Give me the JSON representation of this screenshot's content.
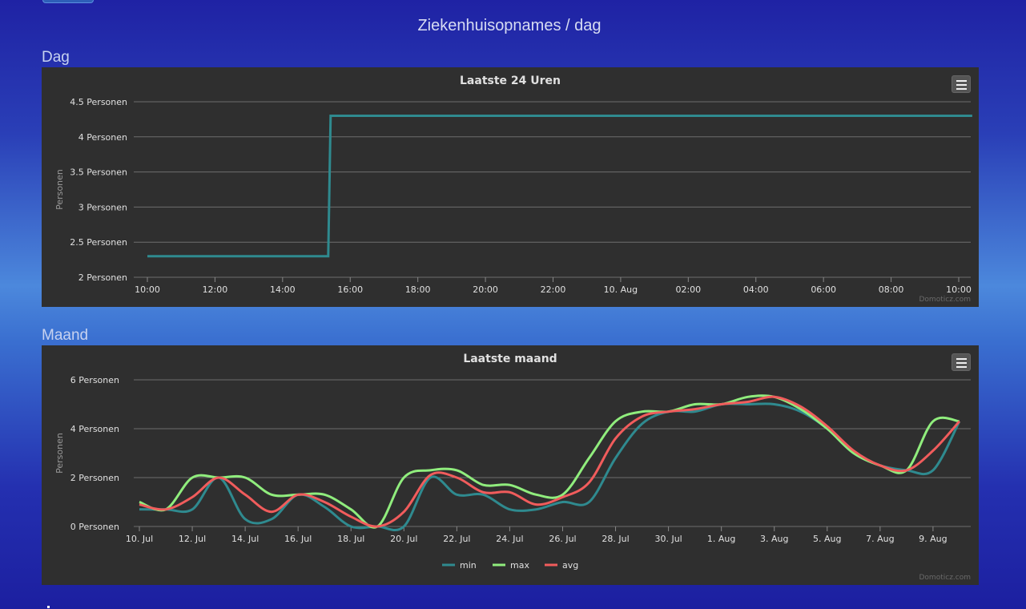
{
  "page": {
    "title": "Ziekenhuisopnames / dag"
  },
  "sections": {
    "day_label": "Dag",
    "month_label": "Maand"
  },
  "credit": "Domoticz.com",
  "colors": {
    "min": "#2f8a8f",
    "max": "#90ed7d",
    "avg": "#f15c5c",
    "day_line": "#2f8a8f",
    "panel_bg": "#2f2f2f"
  },
  "icons": {
    "menu": "hamburger-menu-icon"
  },
  "chart_data": [
    {
      "type": "line",
      "title": "Laatste 24 Uren",
      "ylabel": "Personen",
      "xlabel": "",
      "ylim": [
        2,
        4.5
      ],
      "y_ticks": [
        "2 Personen",
        "2.5 Personen",
        "3 Personen",
        "3.5 Personen",
        "4 Personen",
        "4.5 Personen"
      ],
      "x_ticks": [
        "10:00",
        "12:00",
        "14:00",
        "16:00",
        "18:00",
        "20:00",
        "22:00",
        "10. Aug",
        "02:00",
        "04:00",
        "06:00",
        "08:00",
        "10:00"
      ],
      "grid": true,
      "series": [
        {
          "values": [
            [
              0,
              2.3
            ],
            [
              5.35,
              2.3
            ],
            [
              5.42,
              4.3
            ],
            [
              24.4,
              4.3
            ]
          ]
        }
      ]
    },
    {
      "type": "line",
      "title": "Laatste maand",
      "ylabel": "Personen",
      "xlabel": "",
      "ylim": [
        0,
        6
      ],
      "y_ticks": [
        "0 Personen",
        "2 Personen",
        "4 Personen",
        "6 Personen"
      ],
      "x_ticks": [
        "10. Jul",
        "12. Jul",
        "14. Jul",
        "16. Jul",
        "18. Jul",
        "20. Jul",
        "22. Jul",
        "24. Jul",
        "26. Jul",
        "28. Jul",
        "30. Jul",
        "1. Aug",
        "3. Aug",
        "5. Aug",
        "7. Aug",
        "9. Aug"
      ],
      "grid": true,
      "legend": "bottom-center",
      "series": [
        {
          "name": "min",
          "values": [
            0.7,
            0.7,
            0.7,
            2.0,
            0.3,
            0.3,
            1.3,
            0.8,
            0.0,
            0.0,
            0.0,
            2.0,
            1.3,
            1.3,
            0.7,
            0.7,
            1.0,
            1.0,
            2.8,
            4.2,
            4.7,
            4.7,
            5.0,
            5.0,
            5.0,
            4.7,
            4.0,
            3.0,
            2.5,
            2.3,
            2.3,
            4.3
          ]
        },
        {
          "name": "max",
          "values": [
            1.0,
            0.7,
            2.0,
            2.0,
            2.0,
            1.3,
            1.3,
            1.3,
            0.7,
            0.0,
            2.0,
            2.3,
            2.3,
            1.7,
            1.7,
            1.3,
            1.3,
            2.8,
            4.3,
            4.7,
            4.7,
            5.0,
            5.0,
            5.3,
            5.3,
            4.8,
            4.0,
            3.0,
            2.5,
            2.3,
            4.3,
            4.3
          ]
        },
        {
          "name": "avg",
          "values": [
            0.9,
            0.7,
            1.2,
            2.0,
            1.3,
            0.6,
            1.3,
            1.0,
            0.4,
            0.0,
            0.6,
            2.1,
            2.0,
            1.4,
            1.4,
            0.9,
            1.2,
            1.8,
            3.6,
            4.5,
            4.7,
            4.8,
            5.0,
            5.1,
            5.3,
            4.9,
            4.1,
            3.1,
            2.5,
            2.3,
            3.1,
            4.3
          ]
        }
      ]
    }
  ]
}
